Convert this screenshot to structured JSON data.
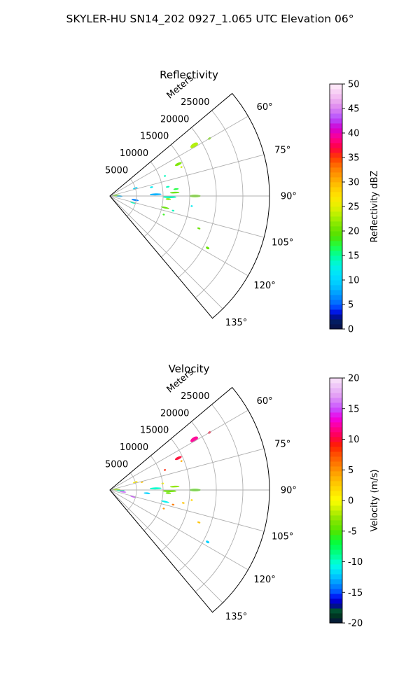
{
  "figure": {
    "title": "SKYLER-HU  SN14_202  0927_1.065 UTC Elevation 06°"
  },
  "chart_data": [
    {
      "type": "heatmap",
      "subtype": "polar-sector",
      "title": "Reflectivity",
      "radial_label": "Meters",
      "radial_ticks": [
        "5000",
        "10000",
        "15000",
        "20000",
        "25000"
      ],
      "radial_values": [
        5000,
        10000,
        15000,
        20000,
        25000
      ],
      "rmax": 30000,
      "theta_range_deg": [
        50,
        140
      ],
      "theta_ticks": [
        "60°",
        "75°",
        "90°",
        "105°",
        "120°",
        "135°"
      ],
      "theta_values": [
        60,
        75,
        90,
        105,
        120,
        135
      ],
      "grid": true,
      "colorbar": {
        "label": "Reflectivity dBZ",
        "range": [
          0,
          50
        ],
        "ticks": [
          "0",
          "5",
          "10",
          "15",
          "20",
          "25",
          "30",
          "35",
          "40",
          "45",
          "50"
        ],
        "tick_values": [
          0,
          5,
          10,
          15,
          20,
          25,
          30,
          35,
          40,
          45,
          50
        ]
      },
      "echoes": [
        {
          "theta": 87,
          "r": 1200,
          "dtheta": 3,
          "dr": 1500,
          "value": 20
        },
        {
          "theta": 91,
          "r": 1800,
          "dtheta": 2,
          "dr": 1200,
          "value": 8
        },
        {
          "theta": 88,
          "r": 8600,
          "dtheta": 2.5,
          "dr": 2200,
          "value": 8
        },
        {
          "theta": 91,
          "r": 11200,
          "dtheta": 2,
          "dr": 2600,
          "value": 14
        },
        {
          "theta": 87,
          "r": 12200,
          "dtheta": 1.5,
          "dr": 1800,
          "value": 20
        },
        {
          "theta": 84,
          "r": 12500,
          "dtheta": 1.5,
          "dr": 1000,
          "value": 17
        },
        {
          "theta": 90,
          "r": 16000,
          "dtheta": 1.6,
          "dr": 2200,
          "value": 20
        },
        {
          "theta": 93,
          "r": 11000,
          "dtheta": 1.5,
          "dr": 1000,
          "value": 21
        },
        {
          "theta": 99,
          "r": 4800,
          "dtheta": 4,
          "dr": 1400,
          "value": 6
        },
        {
          "theta": 106,
          "r": 4500,
          "dtheta": 2,
          "dr": 1100,
          "value": 14
        },
        {
          "theta": 73,
          "r": 5000,
          "dtheta": 2,
          "dr": 900,
          "value": 10
        },
        {
          "theta": 78,
          "r": 8000,
          "dtheta": 1,
          "dr": 600,
          "value": 12
        },
        {
          "theta": 102,
          "r": 10600,
          "dtheta": 1.3,
          "dr": 1600,
          "value": 20
        },
        {
          "theta": 103,
          "r": 12200,
          "dtheta": 0.5,
          "dr": 500,
          "value": 14
        },
        {
          "theta": 109,
          "r": 10700,
          "dtheta": 0.5,
          "dr": 400,
          "value": 18
        },
        {
          "theta": 81,
          "r": 11000,
          "dtheta": 1.3,
          "dr": 700,
          "value": 14
        },
        {
          "theta": 65,
          "r": 14200,
          "dtheta": 2,
          "dr": 1400,
          "value": 21
        },
        {
          "theta": 68,
          "r": 14500,
          "dtheta": 0.5,
          "dr": 400,
          "value": 24
        },
        {
          "theta": 70,
          "r": 11000,
          "dtheta": 0.5,
          "dr": 400,
          "value": 14
        },
        {
          "theta": 59,
          "r": 18500,
          "dtheta": 2.5,
          "dr": 1600,
          "value": 23
        },
        {
          "theta": 60,
          "r": 21600,
          "dtheta": 1,
          "dr": 600,
          "value": 21
        },
        {
          "theta": 97,
          "r": 15500,
          "dtheta": 0.5,
          "dr": 400,
          "value": 12
        },
        {
          "theta": 110,
          "r": 17800,
          "dtheta": 1,
          "dr": 600,
          "value": 20
        },
        {
          "theta": 118,
          "r": 20800,
          "dtheta": 1.2,
          "dr": 700,
          "value": 20
        }
      ]
    },
    {
      "type": "heatmap",
      "subtype": "polar-sector",
      "title": "Velocity",
      "radial_label": "Meters",
      "radial_ticks": [
        "5000",
        "10000",
        "15000",
        "20000",
        "25000"
      ],
      "radial_values": [
        5000,
        10000,
        15000,
        20000,
        25000
      ],
      "rmax": 30000,
      "theta_range_deg": [
        50,
        140
      ],
      "theta_ticks": [
        "60°",
        "75°",
        "90°",
        "105°",
        "120°",
        "135°"
      ],
      "theta_values": [
        60,
        75,
        90,
        105,
        120,
        135
      ],
      "grid": true,
      "colorbar": {
        "label": "Velocity (m/s)",
        "range": [
          -20,
          20
        ],
        "ticks": [
          "-20",
          "-15",
          "-10",
          "-5",
          "0",
          "5",
          "10",
          "15",
          "20"
        ],
        "tick_values": [
          -20,
          -15,
          -10,
          -5,
          0,
          5,
          10,
          15,
          20
        ]
      },
      "echoes": [
        {
          "theta": 87,
          "r": 1200,
          "dtheta": 3,
          "dr": 1500,
          "value": -3
        },
        {
          "theta": 93,
          "r": 2000,
          "dtheta": 3,
          "dr": 1500,
          "value": -9
        },
        {
          "theta": 98,
          "r": 2500,
          "dtheta": 3,
          "dr": 1200,
          "value": 16
        },
        {
          "theta": 88,
          "r": 8600,
          "dtheta": 2.5,
          "dr": 2200,
          "value": -10
        },
        {
          "theta": 91,
          "r": 11200,
          "dtheta": 2,
          "dr": 2600,
          "value": -4
        },
        {
          "theta": 87,
          "r": 12200,
          "dtheta": 1.5,
          "dr": 1800,
          "value": -3
        },
        {
          "theta": 90,
          "r": 16000,
          "dtheta": 1.6,
          "dr": 2200,
          "value": -5
        },
        {
          "theta": 93,
          "r": 11000,
          "dtheta": 1.5,
          "dr": 1000,
          "value": -4
        },
        {
          "theta": 95,
          "r": 7000,
          "dtheta": 1.5,
          "dr": 1200,
          "value": -12
        },
        {
          "theta": 106,
          "r": 4500,
          "dtheta": 2,
          "dr": 1100,
          "value": 15
        },
        {
          "theta": 73,
          "r": 5000,
          "dtheta": 2,
          "dr": 900,
          "value": 1
        },
        {
          "theta": 76,
          "r": 6200,
          "dtheta": 1,
          "dr": 500,
          "value": 3
        },
        {
          "theta": 83,
          "r": 10000,
          "dtheta": 1,
          "dr": 500,
          "value": 0
        },
        {
          "theta": 102,
          "r": 10600,
          "dtheta": 1.3,
          "dr": 1600,
          "value": -11
        },
        {
          "theta": 103,
          "r": 12200,
          "dtheta": 0.5,
          "dr": 500,
          "value": 6
        },
        {
          "theta": 109,
          "r": 10700,
          "dtheta": 0.5,
          "dr": 400,
          "value": 5
        },
        {
          "theta": 65,
          "r": 14200,
          "dtheta": 2,
          "dr": 1400,
          "value": 10
        },
        {
          "theta": 68,
          "r": 14500,
          "dtheta": 0.5,
          "dr": 400,
          "value": 4
        },
        {
          "theta": 70,
          "r": 11000,
          "dtheta": 0.5,
          "dr": 400,
          "value": 9
        },
        {
          "theta": 59,
          "r": 18500,
          "dtheta": 2.5,
          "dr": 1600,
          "value": 12
        },
        {
          "theta": 60,
          "r": 21600,
          "dtheta": 1,
          "dr": 600,
          "value": 10
        },
        {
          "theta": 97,
          "r": 15500,
          "dtheta": 0.5,
          "dr": 400,
          "value": 2
        },
        {
          "theta": 100,
          "r": 14000,
          "dtheta": 0.6,
          "dr": 500,
          "value": 3
        },
        {
          "theta": 110,
          "r": 17800,
          "dtheta": 1,
          "dr": 600,
          "value": 3
        },
        {
          "theta": 118,
          "r": 20800,
          "dtheta": 1.2,
          "dr": 700,
          "value": -12
        }
      ]
    }
  ]
}
